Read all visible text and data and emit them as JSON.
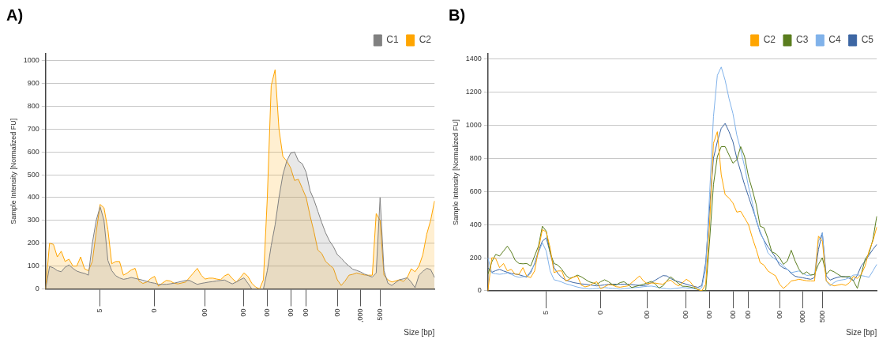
{
  "chart_data": [
    {
      "type": "area",
      "title": "A)",
      "xlabel": "Size [bp]",
      "ylabel": "Sample Intensity [Normalized FU]",
      "categories": [
        null,
        null,
        null,
        null,
        null,
        null,
        null,
        null,
        null,
        null,
        null,
        null,
        null,
        null,
        "5",
        null,
        null,
        null,
        null,
        null,
        null,
        null,
        null,
        null,
        null,
        null,
        null,
        null,
        "0",
        null,
        null,
        null,
        null,
        null,
        null,
        null,
        null,
        null,
        null,
        null,
        null,
        "00",
        null,
        null,
        null,
        null,
        null,
        null,
        null,
        null,
        null,
        "00",
        null,
        null,
        null,
        null,
        null,
        "00",
        null,
        null,
        null,
        null,
        null,
        "00",
        null,
        null,
        null,
        "00",
        null,
        null,
        null,
        null,
        null,
        null,
        null,
        "00",
        null,
        null,
        null,
        null,
        null,
        ",000",
        null,
        null,
        null,
        null,
        "500",
        null,
        null,
        null,
        null,
        null,
        null,
        null,
        null,
        null,
        null,
        null,
        null,
        null,
        null
      ],
      "ylim": [
        0,
        1030
      ],
      "yticks": [
        0,
        100,
        200,
        300,
        400,
        500,
        600,
        700,
        800,
        900,
        1000
      ],
      "grid": "y",
      "legend": "top right",
      "series": [
        {
          "name": "C1",
          "color": "#808080",
          "values": [
            0,
            98,
            92,
            80,
            75,
            95,
            105,
            90,
            78,
            72,
            68,
            60,
            200,
            300,
            360,
            300,
            125,
            80,
            58,
            48,
            42,
            45,
            50,
            46,
            42,
            38,
            33,
            28,
            25,
            20,
            20,
            20,
            22,
            25,
            29,
            33,
            37,
            37,
            28,
            20,
            24,
            27,
            30,
            32,
            35,
            37,
            39,
            30,
            22,
            30,
            40,
            48,
            25,
            0,
            0,
            0,
            0,
            80,
            190,
            280,
            400,
            500,
            560,
            595,
            600,
            560,
            548,
            510,
            430,
            390,
            340,
            290,
            245,
            210,
            185,
            150,
            135,
            115,
            100,
            86,
            81,
            74,
            65,
            58,
            52,
            70,
            400,
            80,
            25,
            15,
            28,
            40,
            44,
            49,
            30,
            5,
            60,
            77,
            90,
            85,
            50
          ]
        },
        {
          "name": "C2",
          "color": "#ffa500",
          "values": [
            0,
            200,
            195,
            140,
            165,
            120,
            130,
            100,
            100,
            140,
            88,
            80,
            120,
            250,
            370,
            355,
            260,
            110,
            120,
            120,
            60,
            70,
            83,
            90,
            35,
            24,
            30,
            45,
            55,
            12,
            25,
            37,
            35,
            25,
            22,
            26,
            30,
            50,
            70,
            90,
            60,
            43,
            47,
            47,
            43,
            40,
            57,
            65,
            45,
            30,
            48,
            70,
            55,
            25,
            8,
            0,
            40,
            400,
            890,
            960,
            700,
            580,
            560,
            530,
            475,
            480,
            440,
            400,
            320,
            250,
            170,
            155,
            120,
            105,
            90,
            40,
            15,
            35,
            60,
            64,
            70,
            65,
            61,
            60,
            60,
            330,
            300,
            60,
            40,
            30,
            35,
            40,
            33,
            50,
            88,
            75,
            100,
            150,
            240,
            300,
            385
          ]
        }
      ]
    },
    {
      "type": "line",
      "title": "B)",
      "xlabel": "Size [bp]",
      "ylabel": "Sample Intensity [Normalized FU]",
      "categories": [
        null,
        null,
        null,
        null,
        null,
        null,
        null,
        null,
        null,
        null,
        null,
        null,
        null,
        null,
        null,
        "5",
        null,
        null,
        null,
        null,
        null,
        null,
        null,
        null,
        null,
        null,
        null,
        null,
        null,
        "0",
        null,
        null,
        null,
        null,
        null,
        null,
        null,
        null,
        null,
        null,
        null,
        "00",
        null,
        null,
        null,
        null,
        null,
        null,
        null,
        null,
        null,
        "00",
        null,
        null,
        null,
        null,
        null,
        "00",
        null,
        null,
        null,
        null,
        null,
        "00",
        null,
        null,
        null,
        "00",
        null,
        null,
        null,
        null,
        null,
        null,
        null,
        "00",
        null,
        null,
        null,
        null,
        null,
        "000",
        null,
        null,
        null,
        null,
        "500",
        null,
        null,
        null,
        null,
        null,
        null,
        null,
        null,
        null,
        null,
        null,
        null,
        null,
        null
      ],
      "ylim": [
        0,
        1430
      ],
      "yticks": [
        0,
        200,
        400,
        600,
        800,
        1000,
        1200,
        1400
      ],
      "grid": "y",
      "legend": "top right",
      "series": [
        {
          "name": "C2",
          "color": "#ffa500",
          "values": [
            0,
            200,
            195,
            140,
            165,
            120,
            130,
            100,
            100,
            140,
            88,
            80,
            120,
            250,
            370,
            355,
            260,
            110,
            120,
            120,
            60,
            70,
            83,
            90,
            35,
            24,
            30,
            45,
            55,
            12,
            25,
            37,
            35,
            25,
            22,
            26,
            30,
            50,
            70,
            90,
            60,
            43,
            47,
            47,
            43,
            40,
            57,
            65,
            45,
            30,
            48,
            70,
            55,
            25,
            8,
            0,
            40,
            400,
            890,
            960,
            700,
            580,
            560,
            530,
            475,
            480,
            440,
            400,
            320,
            250,
            170,
            155,
            120,
            105,
            90,
            40,
            15,
            35,
            60,
            64,
            70,
            65,
            61,
            60,
            60,
            330,
            300,
            60,
            40,
            30,
            35,
            40,
            33,
            50,
            88,
            75,
            100,
            150,
            240,
            300,
            385
          ]
        },
        {
          "name": "C3",
          "color": "#5a7d1e",
          "values": [
            100,
            175,
            220,
            210,
            240,
            270,
            235,
            185,
            165,
            163,
            165,
            150,
            210,
            270,
            390,
            360,
            230,
            165,
            155,
            130,
            95,
            75,
            83,
            95,
            85,
            70,
            55,
            48,
            40,
            55,
            67,
            55,
            38,
            35,
            50,
            55,
            38,
            20,
            27,
            33,
            40,
            48,
            57,
            42,
            17,
            30,
            60,
            85,
            65,
            45,
            28,
            27,
            23,
            18,
            8,
            0,
            0,
            300,
            640,
            810,
            870,
            870,
            820,
            770,
            790,
            870,
            810,
            690,
            610,
            520,
            390,
            380,
            315,
            235,
            225,
            200,
            160,
            180,
            245,
            180,
            130,
            100,
            115,
            95,
            100,
            160,
            200,
            100,
            125,
            115,
            100,
            85,
            85,
            88,
            60,
            15,
            100,
            190,
            225,
            310,
            450
          ]
        },
        {
          "name": "C4",
          "color": "#80b2ea",
          "values": [
            200,
            108,
            103,
            100,
            103,
            108,
            100,
            88,
            82,
            85,
            88,
            120,
            160,
            230,
            290,
            240,
            120,
            67,
            61,
            53,
            43,
            37,
            30,
            23,
            18,
            15,
            11,
            12,
            15,
            18,
            20,
            17,
            15,
            13,
            10,
            13,
            16,
            19,
            20,
            22,
            25,
            27,
            29,
            25,
            20,
            16,
            12,
            11,
            14,
            17,
            20,
            18,
            15,
            12,
            11,
            20,
            130,
            580,
            1050,
            1300,
            1350,
            1270,
            1160,
            1070,
            940,
            850,
            750,
            630,
            530,
            420,
            360,
            300,
            230,
            205,
            190,
            170,
            150,
            130,
            110,
            115,
            120,
            105,
            93,
            95,
            98,
            300,
            350,
            60,
            30,
            50,
            62,
            66,
            70,
            82,
            95,
            97,
            92,
            88,
            82,
            120,
            160
          ]
        },
        {
          "name": "C5",
          "color": "#3d66a3",
          "values": [
            140,
            112,
            122,
            130,
            120,
            112,
            105,
            102,
            97,
            90,
            83,
            110,
            165,
            240,
            300,
            320,
            230,
            140,
            105,
            80,
            65,
            57,
            50,
            46,
            42,
            40,
            37,
            33,
            30,
            33,
            36,
            39,
            40,
            40,
            40,
            40,
            40,
            38,
            35,
            33,
            31,
            37,
            50,
            64,
            78,
            92,
            90,
            75,
            62,
            55,
            48,
            40,
            33,
            27,
            21,
            32,
            170,
            500,
            800,
            900,
            980,
            1010,
            960,
            900,
            800,
            720,
            640,
            570,
            500,
            430,
            350,
            305,
            265,
            235,
            200,
            155,
            138,
            130,
            105,
            88,
            83,
            79,
            74,
            70,
            80,
            250,
            350,
            90,
            65,
            75,
            82,
            87,
            85,
            75,
            62,
            95,
            150,
            180,
            215,
            250,
            280
          ]
        }
      ]
    }
  ]
}
